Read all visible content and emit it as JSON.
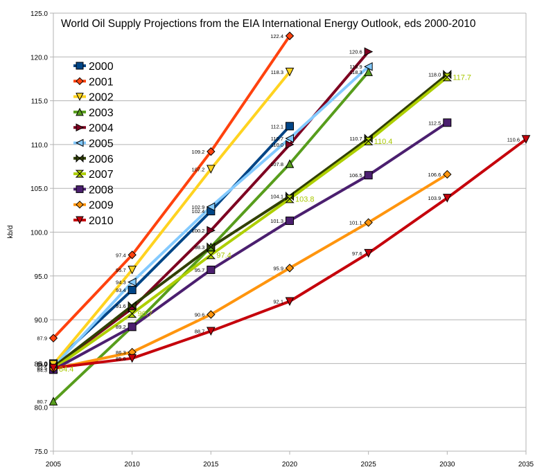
{
  "chart_data": {
    "type": "line",
    "title": "World Oil Supply Projections from the EIA International Energy Outlook, eds 2000-2010",
    "xlabel": "",
    "ylabel": "kb/d",
    "xlim": [
      2005,
      2035
    ],
    "ylim": [
      75.0,
      125.0
    ],
    "x_ticks": [
      "2005",
      "2010",
      "2015",
      "2020",
      "2025",
      "2030",
      "2035"
    ],
    "y_ticks": [
      "75.0",
      "80.0",
      "85.0",
      "90.0",
      "95.0",
      "100.0",
      "105.0",
      "110.0",
      "115.0",
      "120.0",
      "125.0"
    ],
    "grid": "horizontal",
    "legend_position": "top-left",
    "series": [
      {
        "name": "2000",
        "color": "#004586",
        "marker": "square",
        "x": [
          2005,
          2010,
          2015,
          2020
        ],
        "values": [
          85.0,
          93.4,
          102.4,
          112.1
        ],
        "labels": [
          "85.0",
          "93.4",
          "102.4",
          "112.1"
        ]
      },
      {
        "name": "2001",
        "color": "#ff420e",
        "marker": "diamond",
        "x": [
          2005,
          2010,
          2015,
          2020
        ],
        "values": [
          87.9,
          97.4,
          109.2,
          122.4
        ],
        "labels": [
          "87.9",
          "97.4",
          "109.2",
          "122.4"
        ]
      },
      {
        "name": "2002",
        "color": "#ffd320",
        "marker": "triangle-down",
        "x": [
          2005,
          2010,
          2015,
          2020
        ],
        "values": [
          84.9,
          95.7,
          107.2,
          118.3
        ],
        "labels": [
          "84.9",
          "95.7",
          "107.2",
          "118.3"
        ]
      },
      {
        "name": "2003",
        "color": "#579d1c",
        "marker": "triangle-up",
        "x": [
          2005,
          2010,
          2015,
          2020,
          2025
        ],
        "values": [
          80.7,
          89.2,
          98.3,
          107.8,
          118.3
        ],
        "labels": [
          "80.7",
          "",
          "",
          "107.8",
          "118.3"
        ]
      },
      {
        "name": "2004",
        "color": "#7e0021",
        "marker": "triangle-right",
        "x": [
          2005,
          2010,
          2015,
          2020,
          2025
        ],
        "values": [
          84.6,
          91.3,
          100.2,
          110.0,
          120.6
        ],
        "labels": [
          "",
          "",
          "100.2",
          "110.0",
          "120.6"
        ]
      },
      {
        "name": "2005",
        "color": "#83caff",
        "marker": "triangle-left",
        "x": [
          2005,
          2010,
          2015,
          2020,
          2025
        ],
        "values": [
          84.6,
          94.3,
          102.9,
          110.7,
          118.9
        ],
        "labels": [
          "",
          "94.3",
          "102.9",
          "110.7",
          "118.9"
        ]
      },
      {
        "name": "2006",
        "color": "#314004",
        "marker": "bowtie",
        "x": [
          2005,
          2010,
          2015,
          2020,
          2025,
          2030
        ],
        "values": [
          84.6,
          91.6,
          98.3,
          104.1,
          110.7,
          118.0
        ],
        "labels": [
          "",
          "91.6",
          "98.3",
          "104.1",
          "110.7",
          "118.0"
        ]
      },
      {
        "name": "2007",
        "color": "#aecf00",
        "marker": "hourglass",
        "x": [
          2005,
          2010,
          2015,
          2020,
          2025,
          2030
        ],
        "values": [
          84.4,
          90.7,
          97.4,
          103.8,
          110.4,
          117.7
        ],
        "labels": [
          "84.4",
          "90.7",
          "97.4",
          "103.8",
          "110.4",
          "117.7"
        ],
        "highlight_labels": true
      },
      {
        "name": "2008",
        "color": "#4b1f6f",
        "marker": "square",
        "x": [
          2005,
          2010,
          2015,
          2020,
          2025,
          2030
        ],
        "values": [
          84.3,
          89.2,
          95.7,
          101.3,
          106.5,
          112.5
        ],
        "labels": [
          "84.3",
          "89.2",
          "95.7",
          "101.3",
          "106.5",
          "112.5"
        ]
      },
      {
        "name": "2009",
        "color": "#ff950e",
        "marker": "diamond",
        "x": [
          2005,
          2010,
          2015,
          2020,
          2025,
          2030
        ],
        "values": [
          84.4,
          86.3,
          90.6,
          95.9,
          101.1,
          106.6
        ],
        "labels": [
          "",
          "86.3",
          "90.6",
          "95.9",
          "101.1",
          "106.6"
        ]
      },
      {
        "name": "2010",
        "color": "#c5000b",
        "marker": "triangle-down",
        "x": [
          2005,
          2010,
          2015,
          2020,
          2025,
          2030,
          2035
        ],
        "values": [
          84.5,
          85.6,
          88.7,
          92.1,
          97.6,
          103.9,
          110.6
        ],
        "labels": [
          "84.5",
          "85.6",
          "88.7",
          "92.1",
          "97.6",
          "103.9",
          "110.6"
        ]
      }
    ]
  }
}
